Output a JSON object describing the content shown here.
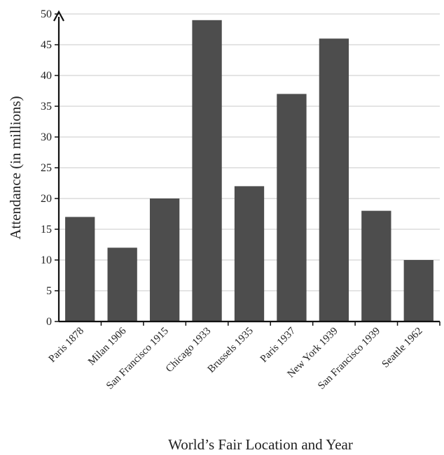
{
  "chart_data": {
    "type": "bar",
    "categories": [
      "Paris 1878",
      "Milan 1906",
      "San Francisco 1915",
      "Chicago 1933",
      "Brussels 1935",
      "Paris 1937",
      "New York 1939",
      "San Francisco 1939",
      "Seattle 1962"
    ],
    "values": [
      17,
      12,
      20,
      49,
      22,
      37,
      46,
      18,
      10
    ],
    "xlabel": "World’s Fair Location and Year",
    "ylabel": "Attendance (in millions)",
    "ylim": [
      0,
      50
    ],
    "yticks": [
      0,
      5,
      10,
      15,
      20,
      25,
      30,
      35,
      40,
      45,
      50
    ],
    "grid": true,
    "colors": {
      "bar": "#4d4d4d",
      "grid": "#c8c8c8",
      "axis": "#111111"
    }
  }
}
